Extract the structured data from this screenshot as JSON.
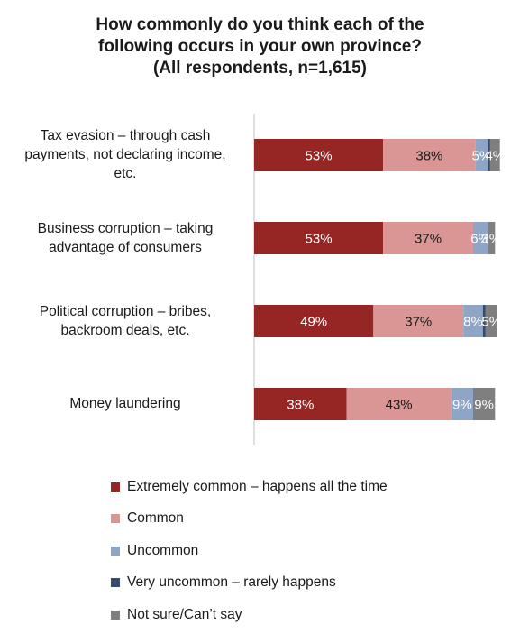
{
  "chart_data": {
    "type": "bar",
    "orientation": "horizontal",
    "stacked": true,
    "title": [
      "How commonly do you think each of the",
      "following occurs in your own province?",
      "(All respondents, n=1,615)"
    ],
    "categories": [
      [
        "Tax evasion – through cash",
        "payments, not declaring income,",
        "etc."
      ],
      [
        "Business corruption – taking",
        "advantage of consumers"
      ],
      [
        "Political corruption – bribes,",
        "backroom deals, etc."
      ],
      [
        "Money laundering"
      ]
    ],
    "series": [
      {
        "name": "Extremely common – happens all the time",
        "color": "#962624",
        "text_color": "#ffffff",
        "values": [
          53,
          53,
          49,
          38
        ],
        "labels": [
          "53%",
          "53%",
          "49%",
          "38%"
        ]
      },
      {
        "name": "Common",
        "color": "#d99694",
        "text_color": "#1a1a1a",
        "values": [
          38,
          37,
          37,
          43
        ],
        "labels": [
          "38%",
          "37%",
          "37%",
          "43%"
        ]
      },
      {
        "name": "Uncommon",
        "color": "#8ea5c6",
        "text_color": "#ffffff",
        "values": [
          5,
          6,
          8,
          9
        ],
        "labels": [
          "5%",
          "6%",
          "8%",
          "9%"
        ]
      },
      {
        "name": "Very uncommon – rarely happens",
        "color": "#364b70",
        "text_color": "#ffffff",
        "values": [
          1,
          0,
          1,
          0
        ],
        "labels": [
          "",
          "",
          "",
          ""
        ]
      },
      {
        "name": "Not sure/Can’t say",
        "color": "#7f7f7f",
        "text_color": "#ffffff",
        "values": [
          4,
          3,
          5,
          9
        ],
        "labels": [
          "4%",
          "3%",
          "5%",
          "9%"
        ]
      }
    ],
    "xlim": [
      0,
      100
    ],
    "grid": false,
    "legend_position": "bottom"
  }
}
